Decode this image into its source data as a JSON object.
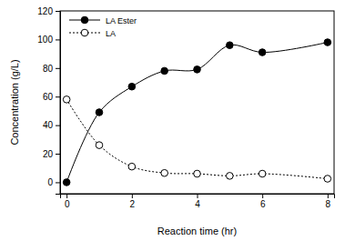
{
  "chart_data": {
    "type": "line",
    "x_label": "Reaction time (hr)",
    "y_label": "Concentration (g/L)",
    "x": [
      0,
      1,
      2,
      3,
      4,
      5,
      6,
      8
    ],
    "series": [
      {
        "name": "LA Ester",
        "color": "#000000",
        "marker": "filled-circle",
        "line_style": "solid",
        "values": [
          0,
          49,
          67,
          78,
          79,
          96,
          91,
          98
        ]
      },
      {
        "name": "LA",
        "color": "#000000",
        "marker": "open-circle",
        "line_style": "dotted",
        "values": [
          58,
          26,
          11,
          6.5,
          6,
          4.5,
          6,
          2.5
        ]
      }
    ],
    "xlim": [
      -0.2,
      8.2
    ],
    "xticks": [
      0,
      2,
      4,
      6,
      8
    ],
    "ylim": [
      -8,
      120
    ],
    "yticks": [
      0,
      20,
      40,
      60,
      80,
      100,
      120
    ],
    "grid": false,
    "legend": "upper left"
  }
}
